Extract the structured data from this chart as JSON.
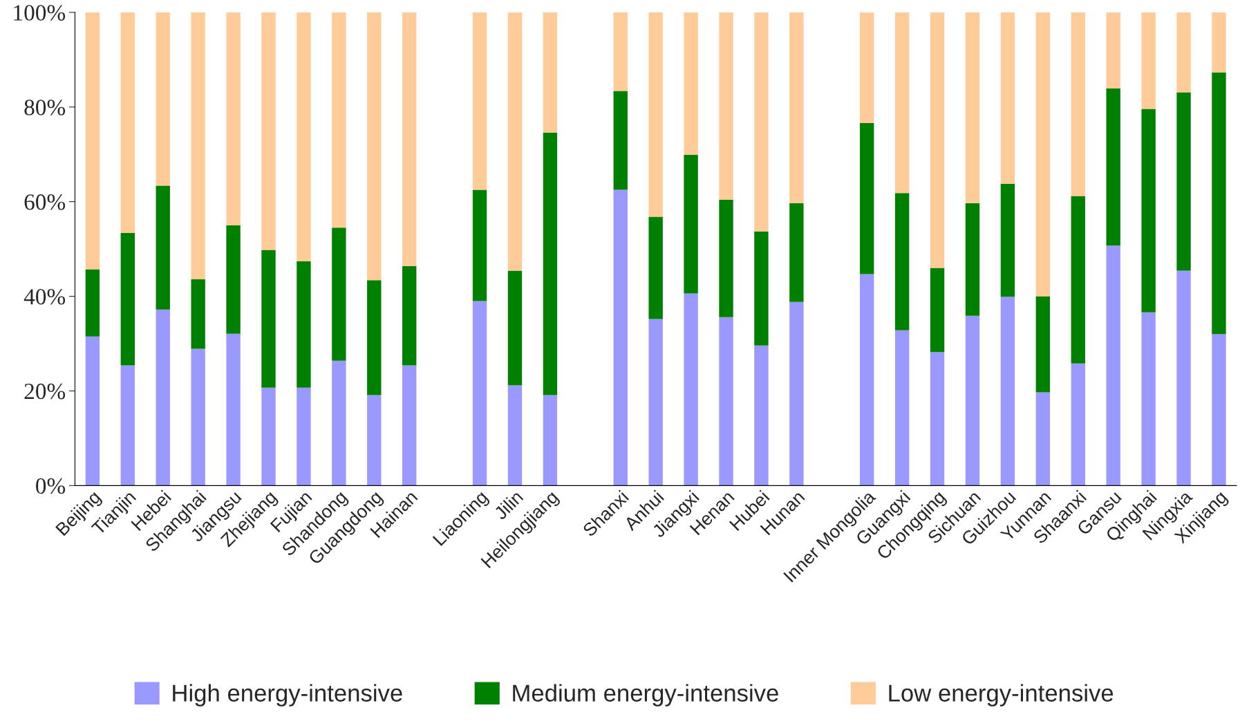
{
  "chart_data": {
    "type": "bar",
    "stacked": true,
    "categories": [
      "Beijing",
      "Tianjin",
      "Hebei",
      "Shanghai",
      "Jiangsu",
      "Zhejiang",
      "Fujian",
      "Shandong",
      "Guangdong",
      "Hainan",
      null,
      "Liaoning",
      "Jilin",
      "Heilongjiang",
      null,
      "Shanxi",
      "Anhui",
      "Jiangxi",
      "Henan",
      "Hubei",
      "Hunan",
      null,
      "Inner Mongolia",
      "Guangxi",
      "Chongqing",
      "Sichuan",
      "Guizhou",
      "Yunnan",
      "Shaanxi",
      "Gansu",
      "Qinghai",
      "Ningxia",
      "Xinjiang"
    ],
    "series": [
      {
        "name": "High energy-intensive",
        "color": "#9999ff",
        "values": [
          31.5,
          25.4,
          37.2,
          28.9,
          32.1,
          20.7,
          20.7,
          26.4,
          19.1,
          25.4,
          null,
          39.0,
          21.2,
          19.1,
          null,
          62.5,
          35.2,
          40.6,
          35.6,
          29.6,
          38.8,
          null,
          44.7,
          32.8,
          28.2,
          35.9,
          39.9,
          19.7,
          25.8,
          50.7,
          36.6,
          45.4,
          32.0
        ]
      },
      {
        "name": "Medium energy-intensive",
        "color": "#008000",
        "values": [
          14.2,
          28.0,
          26.2,
          14.7,
          22.9,
          29.1,
          26.7,
          28.1,
          24.3,
          21.0,
          null,
          23.5,
          24.2,
          55.5,
          null,
          20.9,
          21.6,
          29.3,
          24.8,
          24.1,
          20.9,
          null,
          31.9,
          29.0,
          17.8,
          23.8,
          23.9,
          20.3,
          35.4,
          33.2,
          43.0,
          37.7,
          55.3
        ]
      },
      {
        "name": "Low energy-intensive",
        "color": "#ffcc99",
        "values": [
          54.3,
          46.6,
          36.6,
          56.4,
          45.0,
          50.2,
          52.6,
          45.5,
          56.6,
          53.6,
          null,
          37.5,
          54.6,
          25.4,
          null,
          16.6,
          43.2,
          30.1,
          39.6,
          46.3,
          40.3,
          null,
          23.4,
          38.2,
          54.0,
          40.3,
          36.2,
          60.0,
          38.8,
          16.1,
          20.4,
          16.9,
          12.7
        ]
      }
    ],
    "ylim": [
      0,
      100
    ],
    "yticks": [
      {
        "value": 0,
        "label": "0%"
      },
      {
        "value": 20,
        "label": "20%"
      },
      {
        "value": 40,
        "label": "40%"
      },
      {
        "value": 60,
        "label": "60%"
      },
      {
        "value": 80,
        "label": "80%"
      },
      {
        "value": 100,
        "label": "100%"
      }
    ],
    "grid": false,
    "legend": "bottom"
  }
}
